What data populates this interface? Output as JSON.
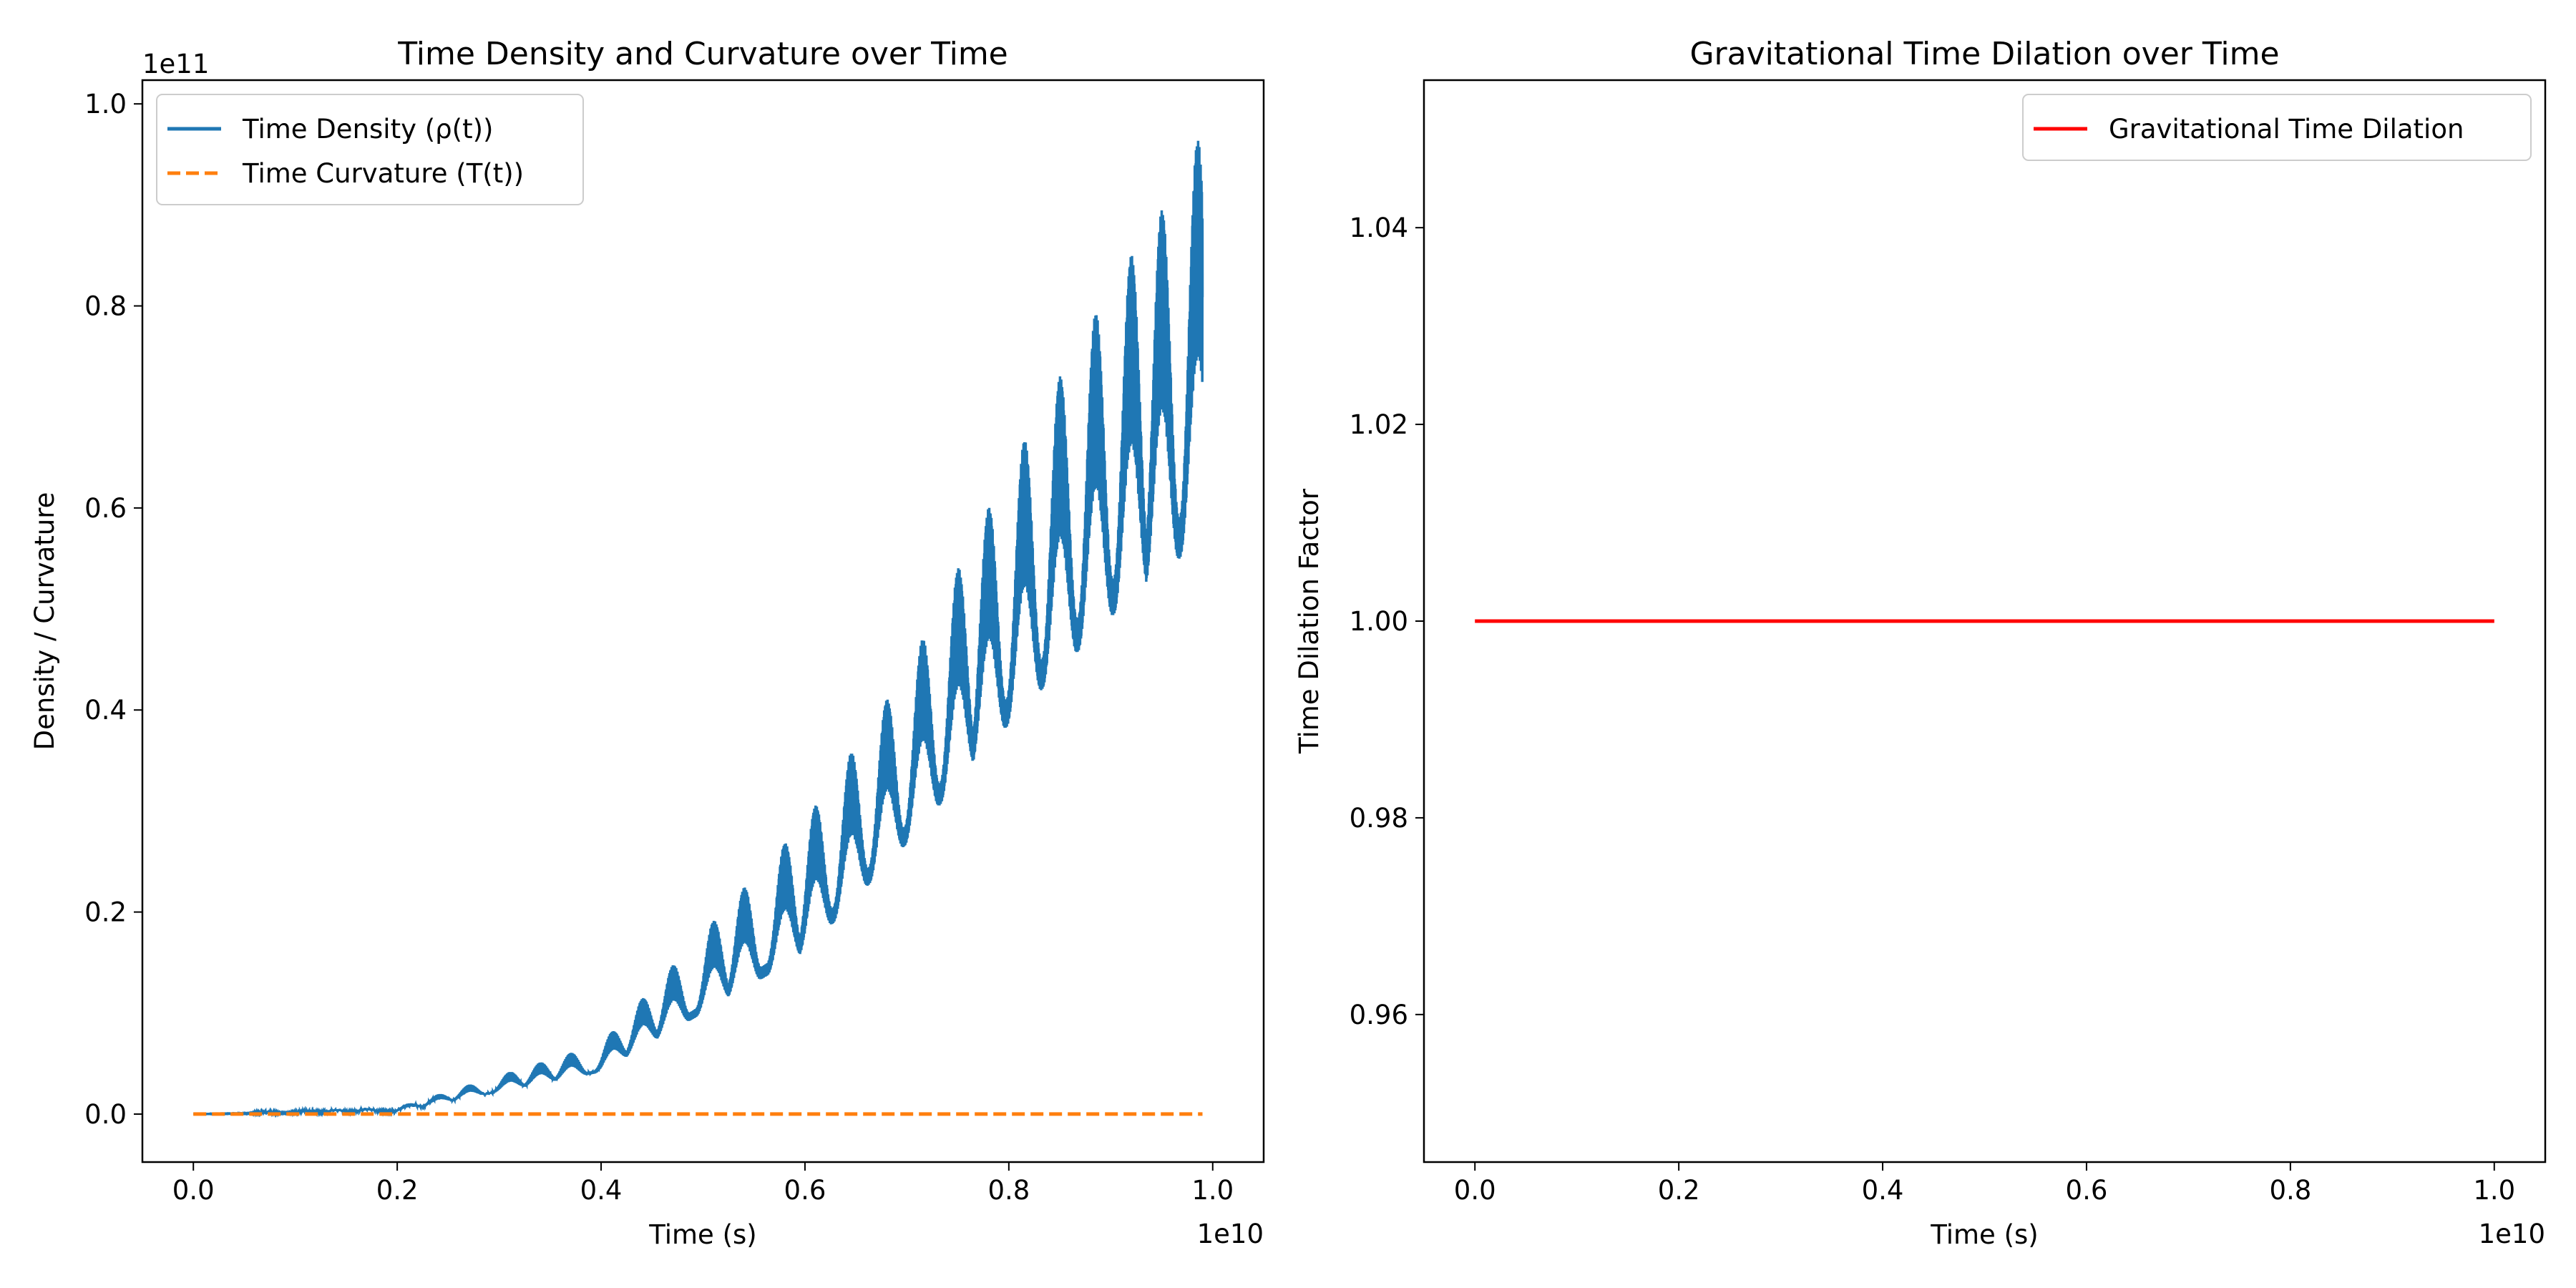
{
  "chart_data": [
    {
      "type": "line",
      "title": "Time Density and Curvature over Time",
      "xlabel": "Time (s)",
      "ylabel": "Density / Curvature",
      "x_offset_text": "1e10",
      "y_offset_text": "1e11",
      "xlim": [
        -0.05,
        1.05
      ],
      "ylim": [
        -0.0475,
        1.0235
      ],
      "x_ticks": [
        0.0,
        0.2,
        0.4,
        0.6,
        0.8,
        1.0
      ],
      "x_tick_labels": [
        "0.0",
        "0.2",
        "0.4",
        "0.6",
        "0.8",
        "1.0"
      ],
      "y_ticks": [
        0.0,
        0.2,
        0.4,
        0.6,
        0.8,
        1.0
      ],
      "y_tick_labels": [
        "0.0",
        "0.2",
        "0.4",
        "0.6",
        "0.8",
        "1.0"
      ],
      "grid": false,
      "legend": "top-left",
      "series": [
        {
          "name": "Time Density (ρ(t))",
          "color": "#1f77b4",
          "style": "solid",
          "x_range": [
            0.0,
            0.99
          ],
          "envelope_max": [
            [
              0.0,
              0.0
            ],
            [
              0.2,
              0.007
            ],
            [
              0.4,
              0.07
            ],
            [
              0.6,
              0.29
            ],
            [
              0.7,
              0.44
            ],
            [
              0.8,
              0.64
            ],
            [
              0.9,
              0.82
            ],
            [
              0.96,
              0.91
            ],
            [
              0.99,
              0.975
            ]
          ],
          "envelope_min": [
            [
              0.0,
              0.0
            ],
            [
              0.2,
              0.001
            ],
            [
              0.4,
              0.035
            ],
            [
              0.6,
              0.13
            ],
            [
              0.7,
              0.23
            ],
            [
              0.8,
              0.33
            ],
            [
              0.9,
              0.42
            ],
            [
              0.96,
              0.46
            ],
            [
              0.99,
              0.49
            ]
          ],
          "oscillation_peaks_x": [
            0.07,
            0.11,
            0.14,
            0.17,
            0.21,
            0.24,
            0.27,
            0.31,
            0.34,
            0.37,
            0.41,
            0.44,
            0.47,
            0.51,
            0.54,
            0.58,
            0.61,
            0.645,
            0.68,
            0.715,
            0.75,
            0.78,
            0.815,
            0.85,
            0.885,
            0.92,
            0.95,
            0.985
          ]
        },
        {
          "name": "Time Curvature (T(t))",
          "color": "#ff7f0e",
          "style": "dashed",
          "x": [
            0.0,
            0.99
          ],
          "y": [
            0.0,
            0.0
          ]
        }
      ]
    },
    {
      "type": "line",
      "title": "Gravitational Time Dilation over Time",
      "xlabel": "Time (s)",
      "ylabel": "Time Dilation Factor",
      "x_offset_text": "1e10",
      "xlim": [
        -0.05,
        1.05
      ],
      "ylim": [
        0.945,
        1.055
      ],
      "x_ticks": [
        0.0,
        0.2,
        0.4,
        0.6,
        0.8,
        1.0
      ],
      "x_tick_labels": [
        "0.0",
        "0.2",
        "0.4",
        "0.6",
        "0.8",
        "1.0"
      ],
      "y_ticks": [
        0.96,
        0.98,
        1.0,
        1.02,
        1.04
      ],
      "y_tick_labels": [
        "0.96",
        "0.98",
        "1.00",
        "1.02",
        "1.04"
      ],
      "grid": false,
      "legend": "top-right",
      "series": [
        {
          "name": "Gravitational Time Dilation",
          "color": "#ff0000",
          "style": "solid",
          "x": [
            0.0,
            1.0
          ],
          "y": [
            1.0,
            1.0
          ]
        }
      ]
    }
  ]
}
